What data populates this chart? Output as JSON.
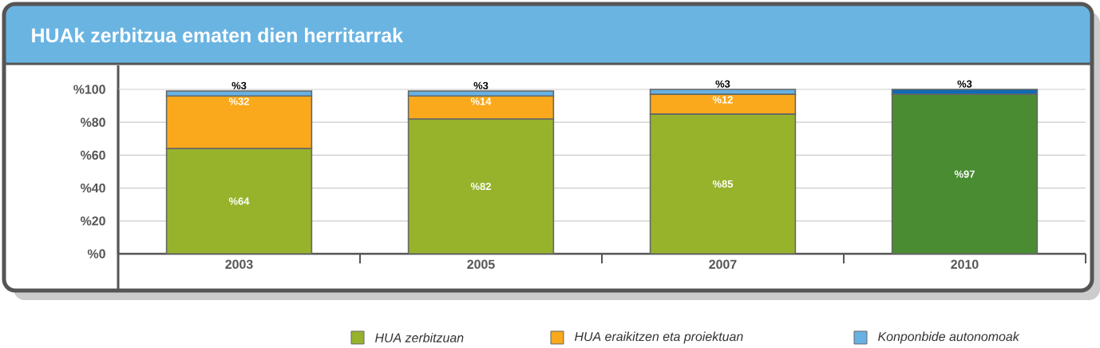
{
  "chart_data": {
    "type": "bar",
    "title": "HUAk zerbitzua ematen dien herritarrak",
    "categories": [
      "2003",
      "2005",
      "2007",
      "2010"
    ],
    "stacked": true,
    "series": [
      {
        "name": "HUA zerbitzuan",
        "color": "#97b32c",
        "colors": [
          "#97b32c",
          "#97b32c",
          "#97b32c",
          "#4a8c32"
        ],
        "values": [
          64,
          82,
          85,
          97
        ],
        "value_labels": [
          "%64",
          "%82",
          "%85",
          "%97"
        ]
      },
      {
        "name": "HUA eraikitzen eta proiektuan",
        "color": "#f9a91b",
        "colors": [
          "#f9a91b",
          "#f9a91b",
          "#f9a91b",
          "#f9a91b"
        ],
        "values": [
          32,
          14,
          12,
          null
        ],
        "value_labels": [
          "%32",
          "%14",
          "%12",
          null
        ]
      },
      {
        "name": "Konponbide autonomoak",
        "color": "#66b2e2",
        "colors": [
          "#66b2e2",
          "#66b2e2",
          "#66b2e2",
          "#0e6cb5"
        ],
        "values": [
          3,
          3,
          3,
          3
        ],
        "value_labels": [
          "%3",
          "%3",
          "%3",
          "%3"
        ]
      }
    ],
    "ylim": [
      0,
      100
    ],
    "yticks": [
      {
        "value": 0,
        "label": "%0"
      },
      {
        "value": 20,
        "label": "%20"
      },
      {
        "value": 40,
        "label": "%40"
      },
      {
        "value": 60,
        "label": "%60"
      },
      {
        "value": 80,
        "label": "%80"
      },
      {
        "value": 100,
        "label": "%100"
      }
    ],
    "grid": "y",
    "legend": "bottom"
  }
}
